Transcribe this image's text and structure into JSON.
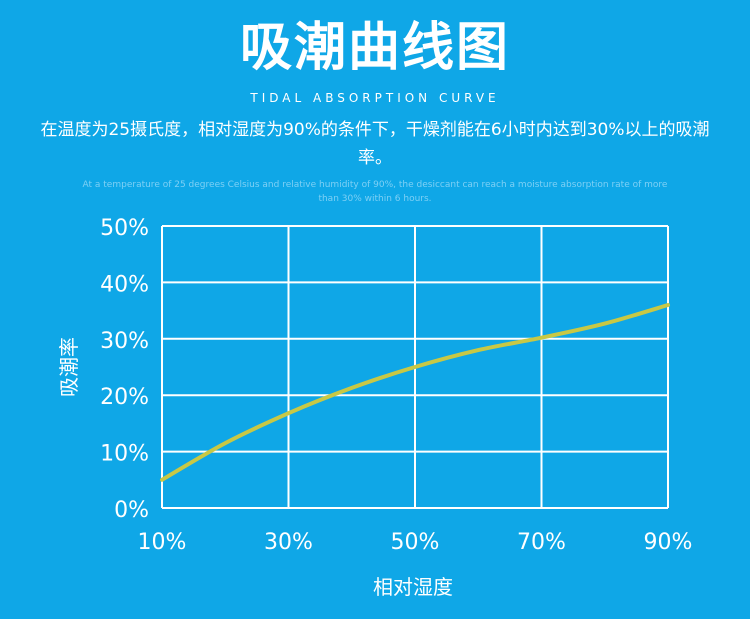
{
  "header": {
    "title": "吸潮曲线图",
    "subtitle_en": "TIDAL ABSORPTION CURVE",
    "desc_cn": "在温度为25摄氏度，相对湿度为90%的条件下，干燥剂能在6小时内达到30%以上的吸潮率。",
    "desc_en": "At a temperature of 25 degrees Celsius and relative humidity of 90%, the desiccant can reach a moisture absorption rate of more than 30% within 6 hours."
  },
  "colors": {
    "background": "#0fa7e7",
    "grid": "#ffffff",
    "curve": "#c8c845",
    "text": "#ffffff"
  },
  "chart_data": {
    "type": "line",
    "title": "",
    "xlabel": "相对湿度",
    "ylabel": "吸潮率",
    "x_ticks": [
      "10%",
      "30%",
      "50%",
      "70%",
      "90%"
    ],
    "y_ticks": [
      "0%",
      "10%",
      "20%",
      "30%",
      "40%",
      "50%"
    ],
    "xlim": [
      10,
      90
    ],
    "ylim": [
      0,
      50
    ],
    "grid": true,
    "series": [
      {
        "x": [
          10,
          20,
          30,
          40,
          50,
          60,
          70,
          80,
          90
        ],
        "y": [
          5,
          11.5,
          16.8,
          21.3,
          25,
          28,
          30.2,
          32.7,
          36
        ]
      }
    ]
  }
}
